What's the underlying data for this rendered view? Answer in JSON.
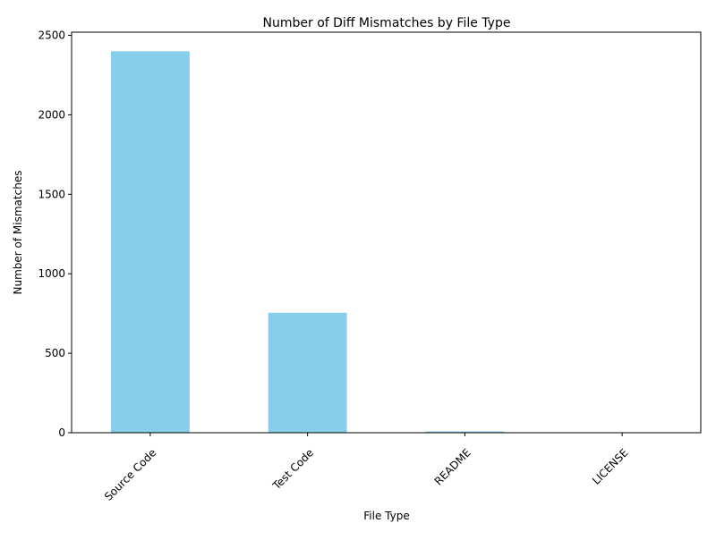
{
  "chart_data": {
    "type": "bar",
    "title": "Number of Diff Mismatches by File Type",
    "xlabel": "File Type",
    "ylabel": "Number of Mismatches",
    "categories": [
      "Source Code",
      "Test Code",
      "README",
      "LICENSE"
    ],
    "values": [
      2400,
      755,
      8,
      1
    ],
    "ylim": [
      0,
      2520
    ],
    "yticks": [
      0,
      500,
      1000,
      1500,
      2000,
      2500
    ],
    "ytick_labels": [
      "0",
      "500",
      "1000",
      "1500",
      "2000",
      "2500"
    ],
    "bar_color": "#87CEEB",
    "grid": false,
    "legend": "none"
  }
}
